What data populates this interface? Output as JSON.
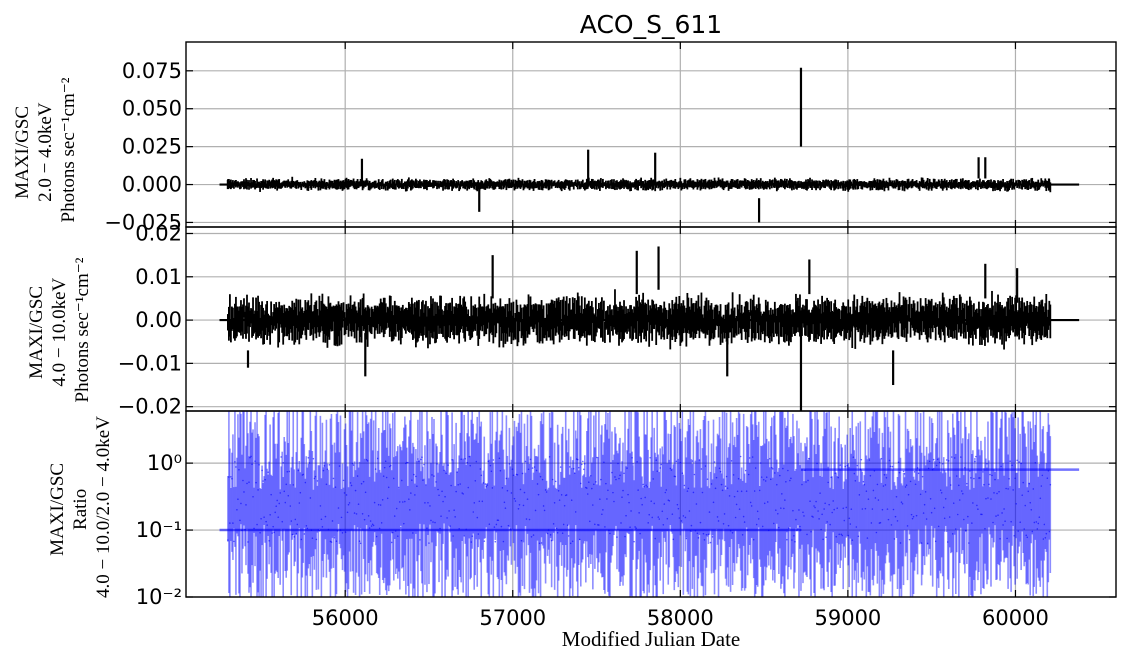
{
  "chart_data": {
    "type": "line",
    "title": "ACO_S_611",
    "xlabel": "Modified Julian Date",
    "xlim": [
      55050,
      60600
    ],
    "x_ticks": [
      56000,
      57000,
      58000,
      59000,
      60000
    ],
    "x_tick_labels": [
      "56000",
      "57000",
      "58000",
      "59000",
      "60000"
    ],
    "grid": true,
    "panels": [
      {
        "id": "soft",
        "ylabel": [
          "MAXI/GSC",
          "2.0 − 4.0keV",
          "Photons sec⁻¹cm⁻²"
        ],
        "ylim": [
          -0.028,
          0.094
        ],
        "y_scale": "linear",
        "y_ticks": [
          -0.025,
          0,
          0.025,
          0.05,
          0.075
        ],
        "y_tick_labels": [
          "−0.025",
          "0.000",
          "0.025",
          "0.050",
          "0.075"
        ],
        "series": [
          {
            "color": "#000000",
            "baseline": {
              "x": [
                55250,
                60380
              ],
              "y": 0.0
            },
            "errorbars": [
              {
                "x": 55300,
                "y": 0.0,
                "err": 0.003
              },
              {
                "x": 56100,
                "y": 0.008,
                "err": 0.009
              },
              {
                "x": 56800,
                "y": -0.009,
                "err": 0.009
              },
              {
                "x": 57450,
                "y": 0.012,
                "err": 0.011
              },
              {
                "x": 57850,
                "y": 0.011,
                "err": 0.01
              },
              {
                "x": 58470,
                "y": -0.017,
                "err": 0.008
              },
              {
                "x": 58720,
                "y": 0.051,
                "err": 0.026
              },
              {
                "x": 59780,
                "y": 0.011,
                "err": 0.007
              },
              {
                "x": 59820,
                "y": 0.011,
                "err": 0.007
              },
              {
                "x": 60200,
                "y": 0.0,
                "err": 0.004
              }
            ]
          }
        ]
      },
      {
        "id": "hard",
        "ylabel": [
          "MAXI/GSC",
          "4.0 − 10.0keV",
          "Photons sec⁻¹cm⁻²"
        ],
        "ylim": [
          -0.021,
          0.0215
        ],
        "y_scale": "linear",
        "y_ticks": [
          -0.02,
          -0.01,
          0,
          0.01,
          0.02
        ],
        "y_tick_labels": [
          "−0.02",
          "−0.01",
          "0.00",
          "0.01",
          "0.02"
        ],
        "series": [
          {
            "color": "#000000",
            "baseline": {
              "x": [
                55250,
                60380
              ],
              "y": 0.0
            },
            "errorbars": [
              {
                "x": 55420,
                "y": -0.009,
                "err": 0.002
              },
              {
                "x": 56120,
                "y": -0.008,
                "err": 0.005
              },
              {
                "x": 56880,
                "y": 0.01,
                "err": 0.005
              },
              {
                "x": 57740,
                "y": 0.011,
                "err": 0.005
              },
              {
                "x": 57870,
                "y": 0.012,
                "err": 0.005
              },
              {
                "x": 58280,
                "y": -0.009,
                "err": 0.004
              },
              {
                "x": 58720,
                "y": -0.011,
                "err": 0.012
              },
              {
                "x": 58770,
                "y": 0.01,
                "err": 0.004
              },
              {
                "x": 59270,
                "y": -0.011,
                "err": 0.004
              },
              {
                "x": 59820,
                "y": 0.009,
                "err": 0.004
              },
              {
                "x": 60010,
                "y": 0.008,
                "err": 0.004
              }
            ]
          }
        ]
      },
      {
        "id": "ratio",
        "ylabel": [
          "MAXI/GSC",
          "Ratio",
          "4.0 − 10.0/2.0 − 4.0keV"
        ],
        "ylim": [
          0.01,
          6.0
        ],
        "y_scale": "log",
        "y_ticks": [
          0.01,
          0.1,
          1.0
        ],
        "y_tick_labels": [
          "10⁻²",
          "10⁻¹",
          "10⁰"
        ],
        "series": [
          {
            "color": "#0000ff",
            "baseline_segments": [
              {
                "x": [
                  55250,
                  58720
                ],
                "y": 0.1
              },
              {
                "x": [
                  58720,
                  60380
                ],
                "y": 0.8
              }
            ],
            "errorbar_band": {
              "x": [
                55300,
                60210
              ],
              "y_low": 0.01,
              "y_high": 6.0
            }
          }
        ]
      }
    ]
  }
}
